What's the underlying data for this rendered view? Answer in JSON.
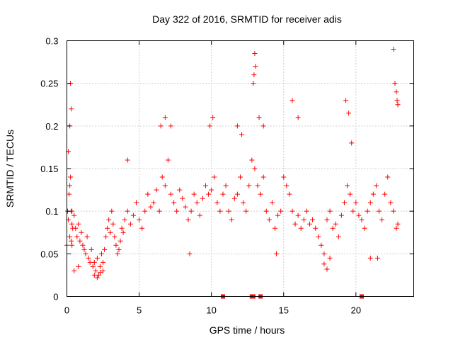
{
  "chart_data": {
    "type": "scatter",
    "title": "Day 322 of 2016, SRMTID for receiver adis",
    "xlabel": "GPS time / hours",
    "ylabel": "SRMTID / TECUs",
    "xlim": [
      0,
      24
    ],
    "ylim": [
      0,
      0.3
    ],
    "x_ticks": [
      0,
      5,
      10,
      15,
      20
    ],
    "x_tick_labels": [
      "0",
      "5",
      "10",
      "15",
      "20"
    ],
    "y_ticks": [
      0,
      0.05,
      0.1,
      0.15,
      0.2,
      0.25,
      0.3
    ],
    "y_tick_labels": [
      "0",
      "0.05",
      "0.1",
      "0.15",
      "0.2",
      "0.25",
      "0.3"
    ],
    "grid": true,
    "series": [
      {
        "name": "SRMTID",
        "color": "#ff0000",
        "marker": "plus",
        "x": [
          0.0,
          0.05,
          0.1,
          0.15,
          0.2,
          0.25,
          0.3,
          0.35,
          0.4,
          0.1,
          0.2,
          0.25,
          0.3,
          0.35,
          0.2,
          0.3,
          0.35,
          0.5,
          0.6,
          0.7,
          0.8,
          0.9,
          1.0,
          1.1,
          1.2,
          1.3,
          1.4,
          1.5,
          1.6,
          1.7,
          1.8,
          1.9,
          2.0,
          2.1,
          2.2,
          2.3,
          2.4,
          2.5,
          2.6,
          2.7,
          2.8,
          2.9,
          3.0,
          3.1,
          3.2,
          3.3,
          3.4,
          3.5,
          3.6,
          3.7,
          3.8,
          3.9,
          4.0,
          4.2,
          4.4,
          4.6,
          4.8,
          5.0,
          5.2,
          5.4,
          5.6,
          5.8,
          6.0,
          6.2,
          6.4,
          6.6,
          6.8,
          7.0,
          7.2,
          7.4,
          7.6,
          7.8,
          8.0,
          8.2,
          8.4,
          8.6,
          8.8,
          9.0,
          9.2,
          9.4,
          9.6,
          9.8,
          10.0,
          10.2,
          10.4,
          10.6,
          10.8,
          11.0,
          11.2,
          11.4,
          11.6,
          11.8,
          12.0,
          12.2,
          12.4,
          12.6,
          12.8,
          13.0,
          13.2,
          13.4,
          13.6,
          13.8,
          14.0,
          14.2,
          14.4,
          14.6,
          14.8,
          15.0,
          15.2,
          15.4,
          15.6,
          15.8,
          16.0,
          16.2,
          16.4,
          16.6,
          16.8,
          17.0,
          17.2,
          17.4,
          17.6,
          17.8,
          18.0,
          18.2,
          18.4,
          18.6,
          18.8,
          19.0,
          19.2,
          19.4,
          19.6,
          19.8,
          20.0,
          20.2,
          20.4,
          20.6,
          20.8,
          21.0,
          21.2,
          21.4,
          21.6,
          21.8,
          22.0,
          22.2,
          22.4,
          22.6,
          22.8,
          22.9,
          6.5,
          6.8,
          7.2,
          9.9,
          10.1,
          11.8,
          12.1,
          12.9,
          13.0,
          13.05,
          12.95,
          13.3,
          13.6,
          15.6,
          16.0,
          19.3,
          19.5,
          19.7,
          22.6,
          22.7,
          22.8,
          22.85,
          22.9,
          1.9,
          2.1,
          2.3,
          2.5,
          17.8,
          18.0,
          18.2,
          0.8,
          0.5,
          4.2,
          8.5,
          14.5,
          21.0,
          21.5
        ],
        "y": [
          0.06,
          0.1,
          0.17,
          0.12,
          0.2,
          0.25,
          0.22,
          0.1,
          0.08,
          0.09,
          0.13,
          0.14,
          0.1,
          0.085,
          0.07,
          0.065,
          0.06,
          0.095,
          0.08,
          0.07,
          0.085,
          0.065,
          0.075,
          0.06,
          0.055,
          0.05,
          0.07,
          0.045,
          0.04,
          0.055,
          0.035,
          0.04,
          0.03,
          0.045,
          0.025,
          0.035,
          0.05,
          0.04,
          0.055,
          0.07,
          0.08,
          0.09,
          0.075,
          0.1,
          0.085,
          0.07,
          0.06,
          0.05,
          0.055,
          0.065,
          0.08,
          0.075,
          0.09,
          0.1,
          0.085,
          0.095,
          0.11,
          0.09,
          0.08,
          0.1,
          0.12,
          0.105,
          0.11,
          0.125,
          0.1,
          0.14,
          0.13,
          0.16,
          0.12,
          0.11,
          0.1,
          0.125,
          0.115,
          0.105,
          0.09,
          0.1,
          0.12,
          0.11,
          0.095,
          0.115,
          0.13,
          0.12,
          0.125,
          0.14,
          0.11,
          0.1,
          0.12,
          0.13,
          0.1,
          0.09,
          0.115,
          0.12,
          0.14,
          0.11,
          0.1,
          0.13,
          0.16,
          0.15,
          0.13,
          0.12,
          0.14,
          0.1,
          0.09,
          0.11,
          0.08,
          0.095,
          0.1,
          0.14,
          0.13,
          0.12,
          0.1,
          0.085,
          0.095,
          0.08,
          0.09,
          0.1,
          0.085,
          0.09,
          0.08,
          0.07,
          0.06,
          0.05,
          0.09,
          0.1,
          0.08,
          0.085,
          0.07,
          0.095,
          0.11,
          0.13,
          0.12,
          0.1,
          0.11,
          0.095,
          0.09,
          0.08,
          0.1,
          0.11,
          0.12,
          0.13,
          0.1,
          0.09,
          0.12,
          0.14,
          0.11,
          0.1,
          0.08,
          0.085,
          0.2,
          0.21,
          0.2,
          0.2,
          0.21,
          0.2,
          0.19,
          0.25,
          0.285,
          0.27,
          0.26,
          0.21,
          0.2,
          0.23,
          0.21,
          0.23,
          0.215,
          0.18,
          0.29,
          0.25,
          0.24,
          0.23,
          0.225,
          0.025,
          0.022,
          0.028,
          0.03,
          0.038,
          0.032,
          0.045,
          0.035,
          0.03,
          0.16,
          0.05,
          0.05,
          0.045,
          0.045
        ],
        "zero_markers_x": [
          10.8,
          12.8,
          12.9,
          13.4,
          20.4
        ]
      }
    ]
  }
}
